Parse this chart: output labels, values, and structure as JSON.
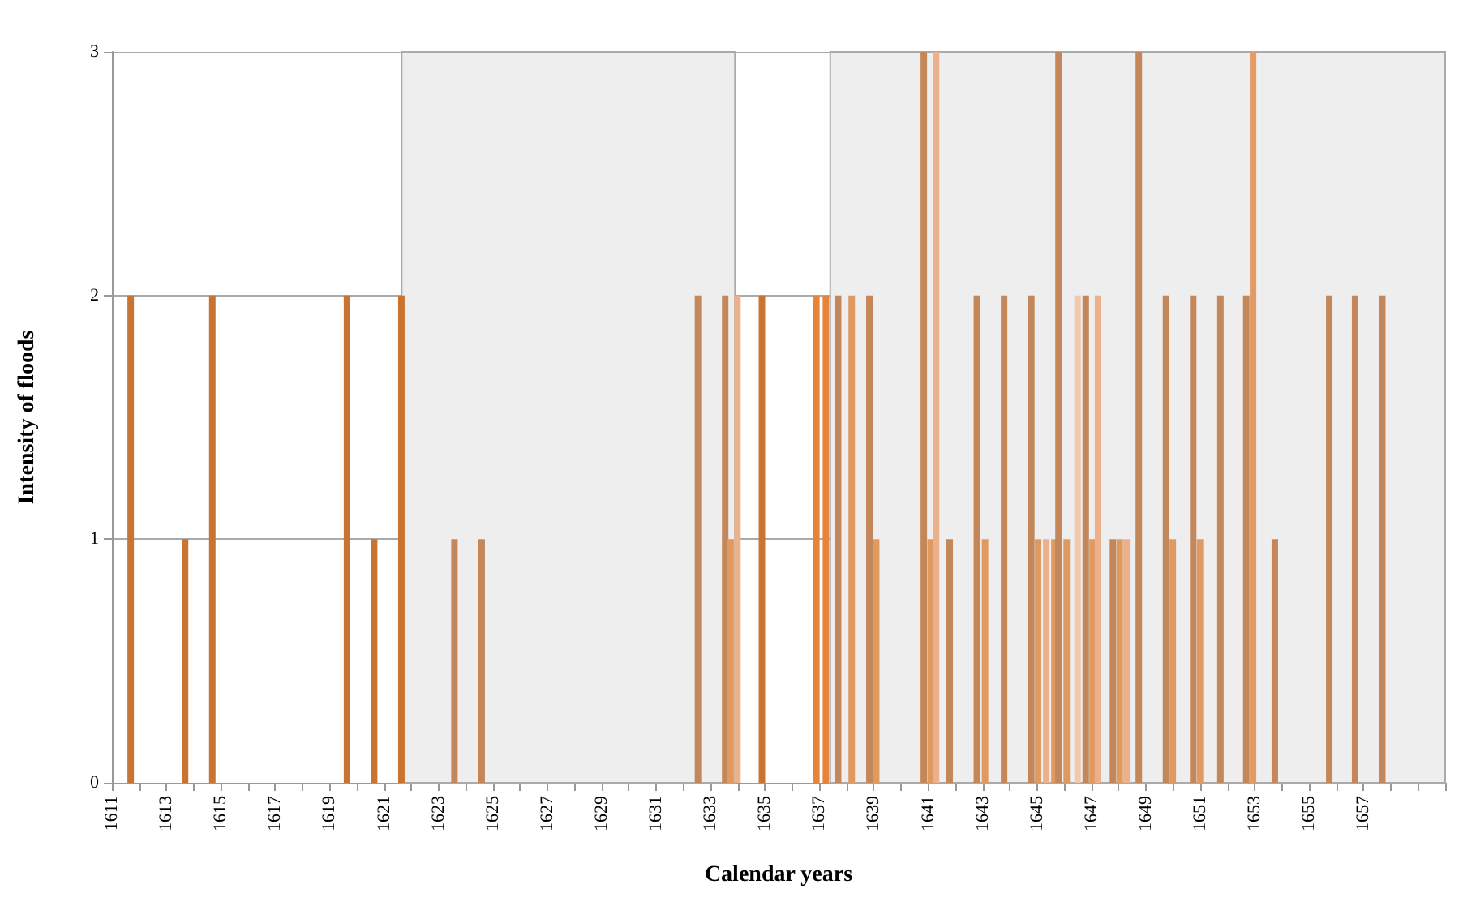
{
  "chart_data": {
    "type": "bar",
    "xlabel": "Calendar years",
    "ylabel": "Intensity of floods",
    "x": [
      1611.6,
      1613.6,
      1614.6,
      1619.55,
      1620.55,
      1621.55,
      1623.5,
      1624.5,
      1632.45,
      1633.45,
      1633.65,
      1633.9,
      1634.8,
      1636.8,
      1637.15,
      1637.6,
      1638.1,
      1638.75,
      1639.0,
      1640.75,
      1641.0,
      1641.2,
      1641.7,
      1642.7,
      1643.0,
      1643.7,
      1644.7,
      1644.95,
      1645.25,
      1645.55,
      1645.7,
      1646.0,
      1646.4,
      1646.7,
      1646.95,
      1647.15,
      1647.7,
      1647.95,
      1648.2,
      1648.65,
      1649.65,
      1649.9,
      1650.65,
      1650.9,
      1651.65,
      1652.6,
      1652.85,
      1653.65,
      1655.65,
      1656.6,
      1657.6
    ],
    "values": [
      2,
      1,
      2,
      2,
      1,
      2,
      1,
      1,
      2,
      2,
      1,
      2,
      2,
      2,
      2,
      2,
      2,
      2,
      1,
      3,
      1,
      3,
      1,
      2,
      1,
      2,
      2,
      1,
      1,
      1,
      3,
      1,
      2,
      2,
      1,
      2,
      1,
      1,
      1,
      3,
      2,
      1,
      2,
      1,
      2,
      2,
      3,
      1,
      2,
      2,
      2
    ],
    "colors": [
      "#c87533",
      "#c87533",
      "#c87533",
      "#c87533",
      "#c87533",
      "#c87533",
      "#c4875a",
      "#c4875a",
      "#c4875a",
      "#c4875a",
      "#e09a60",
      "#ecb08a",
      "#c87533",
      "#e8843a",
      "#e8843a",
      "#c4875a",
      "#e09a60",
      "#c4875a",
      "#e09a60",
      "#c4875a",
      "#e09a60",
      "#ecb08a",
      "#c4875a",
      "#c4875a",
      "#e09a60",
      "#c4875a",
      "#c4875a",
      "#e09a60",
      "#ecb08a",
      "#e09a60",
      "#c4875a",
      "#e09a60",
      "#f0c8b0",
      "#c4875a",
      "#e09a60",
      "#ecb08a",
      "#c4875a",
      "#e09a60",
      "#ecb08a",
      "#c4875a",
      "#c4875a",
      "#e09a60",
      "#c4875a",
      "#e09a60",
      "#c4875a",
      "#c4875a",
      "#e39a63",
      "#c4875a",
      "#c4875a",
      "#c4875a",
      "#c4875a"
    ],
    "xlim": [
      1611,
      1660
    ],
    "xticks": [
      1611,
      {
        "value": 1612,
        "label": null
      },
      1613,
      {
        "value": 1614,
        "label": null
      },
      1615,
      {
        "value": 1616,
        "label": null
      },
      1617,
      {
        "value": 1618,
        "label": null
      },
      1619,
      {
        "value": 1620,
        "label": null
      },
      1621,
      {
        "value": 1622,
        "label": null
      },
      1623,
      {
        "value": 1624,
        "label": null
      },
      1625,
      {
        "value": 1626,
        "label": null
      },
      1627,
      {
        "value": 1628,
        "label": null
      },
      1629,
      {
        "value": 1630,
        "label": null
      },
      1631,
      {
        "value": 1632,
        "label": null
      },
      1633,
      {
        "value": 1634,
        "label": null
      },
      1635,
      {
        "value": 1636,
        "label": null
      },
      1637,
      {
        "value": 1638,
        "label": null
      },
      1639,
      {
        "value": 1640,
        "label": null
      },
      1641,
      {
        "value": 1642,
        "label": null
      },
      1643,
      {
        "value": 1644,
        "label": null
      },
      1645,
      {
        "value": 1646,
        "label": null
      },
      1647,
      {
        "value": 1648,
        "label": null
      },
      1649,
      {
        "value": 1650,
        "label": null
      },
      1651,
      {
        "value": 1652,
        "label": null
      },
      1653,
      {
        "value": 1654,
        "label": null
      },
      1655,
      {
        "value": 1656,
        "label": null
      },
      1657,
      {
        "value": 1658,
        "label": null
      },
      {
        "value": 1659,
        "label": null
      },
      {
        "value": 1660,
        "label": null
      }
    ],
    "ylim": [
      0,
      3
    ],
    "yticks": [
      0,
      1,
      2,
      3
    ],
    "grid": "y",
    "bands": [
      {
        "axis": "x",
        "from": 1621.65,
        "to": 1633.9,
        "color": "#eeeeee"
      },
      {
        "axis": "x",
        "from": 1637.4,
        "to": 1660,
        "color": "#eeeeee"
      }
    ]
  }
}
